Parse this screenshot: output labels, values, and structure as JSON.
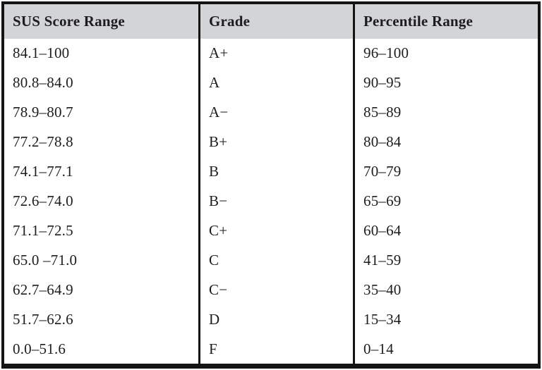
{
  "table": {
    "columns": [
      {
        "key": "sus",
        "label": "SUS Score Range"
      },
      {
        "key": "grade",
        "label": "Grade"
      },
      {
        "key": "percentile",
        "label": "Percentile Range"
      }
    ],
    "rows": [
      {
        "sus": "84.1–100",
        "grade": "A+",
        "percentile": "96–100"
      },
      {
        "sus": "80.8–84.0",
        "grade": "A",
        "percentile": "90–95"
      },
      {
        "sus": "78.9–80.7",
        "grade": "A−",
        "percentile": "85–89"
      },
      {
        "sus": "77.2–78.8",
        "grade": "B+",
        "percentile": "80–84"
      },
      {
        "sus": "74.1–77.1",
        "grade": "B",
        "percentile": "70–79"
      },
      {
        "sus": "72.6–74.0",
        "grade": "B−",
        "percentile": "65–69"
      },
      {
        "sus": "71.1–72.5",
        "grade": "C+",
        "percentile": "60–64"
      },
      {
        "sus": "65.0 –71.0",
        "grade": "C",
        "percentile": "41–59"
      },
      {
        "sus": "62.7–64.9",
        "grade": "C−",
        "percentile": "35–40"
      },
      {
        "sus": "51.7–62.6",
        "grade": "D",
        "percentile": "15–34"
      },
      {
        "sus": "0.0–51.6",
        "grade": "F",
        "percentile": "0–14"
      }
    ]
  },
  "colors": {
    "header_bg": "#d3d4d6",
    "border": "#141414",
    "text": "#1d1d20",
    "page_bg": "#ffffff"
  }
}
